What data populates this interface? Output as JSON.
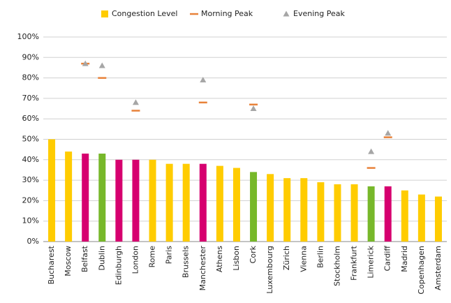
{
  "chart_data": {
    "type": "bar",
    "categories": [
      "Bucharest",
      "Moscow",
      "Belfast",
      "Dublin",
      "Edinburgh",
      "London",
      "Rome",
      "Paris",
      "Brussels",
      "Manchester",
      "Athens",
      "Lisbon",
      "Cork",
      "Luxembourg",
      "Zürich",
      "Vienna",
      "Berlin",
      "Stockholm",
      "Frankfurt",
      "Limerick",
      "Cardiff",
      "Madrid",
      "Copenhagen",
      "Amsterdam"
    ],
    "series": [
      {
        "name": "Congestion Level",
        "type": "bar",
        "color": "#FFCC00",
        "colors": [
          "#FFCC00",
          "#FFCC00",
          "#D6006F",
          "#77B82A",
          "#D6006F",
          "#D6006F",
          "#FFCC00",
          "#FFCC00",
          "#FFCC00",
          "#D6006F",
          "#FFCC00",
          "#FFCC00",
          "#77B82A",
          "#FFCC00",
          "#FFCC00",
          "#FFCC00",
          "#FFCC00",
          "#FFCC00",
          "#FFCC00",
          "#77B82A",
          "#D6006F",
          "#FFCC00",
          "#FFCC00",
          "#FFCC00"
        ],
        "values": [
          50,
          44,
          43,
          43,
          40,
          40,
          40,
          38,
          38,
          38,
          37,
          36,
          34,
          33,
          31,
          31,
          29,
          28,
          28,
          27,
          27,
          25,
          23,
          22
        ]
      },
      {
        "name": "Morning Peak",
        "type": "dash",
        "color": "#E8823A",
        "values": [
          null,
          null,
          87,
          80,
          null,
          64,
          null,
          null,
          null,
          68,
          null,
          null,
          67,
          null,
          null,
          null,
          null,
          null,
          null,
          36,
          51,
          null,
          null,
          null
        ]
      },
      {
        "name": "Evening Peak",
        "type": "triangle",
        "color": "#A6A6A6",
        "values": [
          null,
          null,
          87,
          86,
          null,
          68,
          null,
          null,
          null,
          79,
          null,
          null,
          65,
          null,
          null,
          null,
          null,
          null,
          null,
          44,
          53,
          null,
          null,
          null
        ]
      }
    ],
    "ylim": [
      0,
      100
    ],
    "yticks": [
      {
        "value": 0,
        "label": "0%"
      },
      {
        "value": 10,
        "label": "10%"
      },
      {
        "value": 20,
        "label": "20%"
      },
      {
        "value": 30,
        "label": "30%"
      },
      {
        "value": 40,
        "label": "40%"
      },
      {
        "value": 50,
        "label": "50%"
      },
      {
        "value": 60,
        "label": "60%"
      },
      {
        "value": 70,
        "label": "70%"
      },
      {
        "value": 80,
        "label": "80%"
      },
      {
        "value": 90,
        "label": "90%"
      },
      {
        "value": 100,
        "label": "100%"
      }
    ],
    "grid": true,
    "legend": "top"
  }
}
